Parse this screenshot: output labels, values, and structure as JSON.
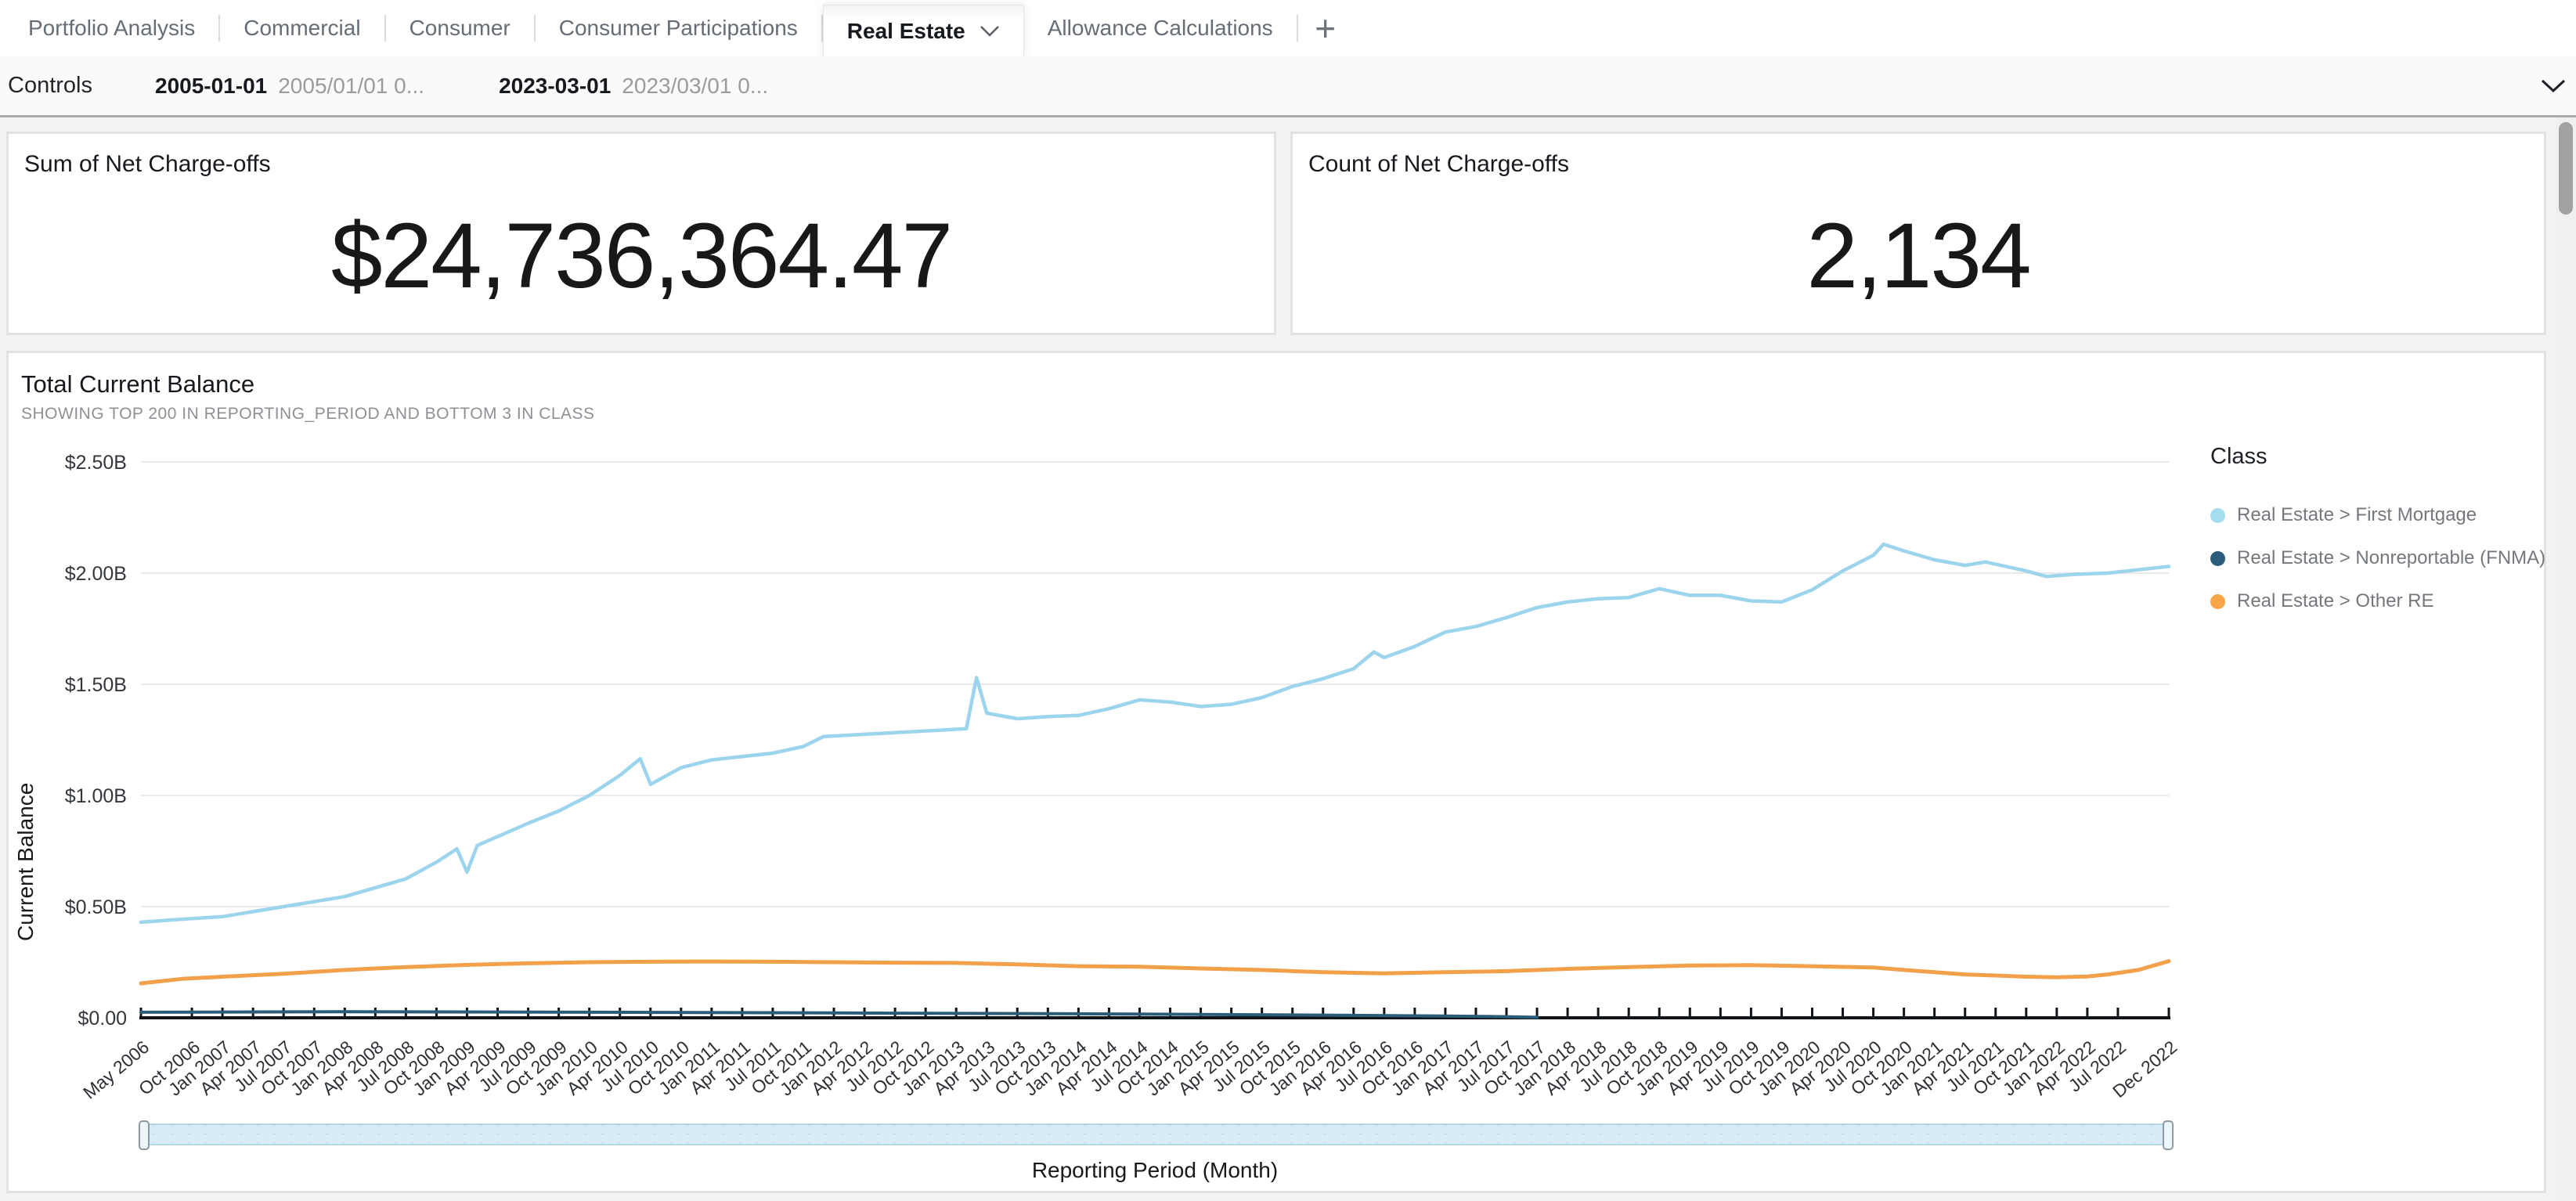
{
  "tabs": {
    "items": [
      {
        "label": "Portfolio Analysis",
        "active": false
      },
      {
        "label": "Commercial",
        "active": false
      },
      {
        "label": "Consumer",
        "active": false
      },
      {
        "label": "Consumer Participations",
        "active": false
      },
      {
        "label": "Real Estate",
        "active": true
      },
      {
        "label": "Allowance Calculations",
        "active": false
      }
    ],
    "add_label": "+"
  },
  "controls": {
    "title": "Controls",
    "filters": [
      {
        "value": "2005-01-01",
        "detail": "2005/01/01 0..."
      },
      {
        "value": "2023-03-01",
        "detail": "2023/03/01 0..."
      }
    ]
  },
  "kpis": [
    {
      "title": "Sum of Net Charge-offs",
      "value": "$24,736,364.47"
    },
    {
      "title": "Count of Net Charge-offs",
      "value": "2,134"
    }
  ],
  "chart_data": {
    "type": "line",
    "title": "Total Current Balance",
    "subtitle": "SHOWING TOP 200 IN REPORTING_PERIOD AND BOTTOM 3 IN CLASS",
    "xlabel": "Reporting Period (Month)",
    "ylabel": "Current Balance",
    "ylim": [
      0,
      2.5
    ],
    "unit": "$B",
    "x_unit": "months since May 2006",
    "x_range": [
      "May 2006",
      "Dec 2022"
    ],
    "grid": true,
    "legend_position": "right",
    "legend_title": "Class",
    "y_ticks": [
      {
        "v": 0.0,
        "t": "$0.00"
      },
      {
        "v": 0.5,
        "t": "$0.50B"
      },
      {
        "v": 1.0,
        "t": "$1.00B"
      },
      {
        "v": 1.5,
        "t": "$1.50B"
      },
      {
        "v": 2.0,
        "t": "$2.00B"
      },
      {
        "v": 2.5,
        "t": "$2.50B"
      }
    ],
    "x_labels": [
      {
        "m": 0,
        "t": "May 2006"
      },
      {
        "m": 5,
        "t": "Oct 2006"
      },
      {
        "m": 8,
        "t": "Jan 2007"
      },
      {
        "m": 11,
        "t": "Apr 2007"
      },
      {
        "m": 14,
        "t": "Jul 2007"
      },
      {
        "m": 17,
        "t": "Oct 2007"
      },
      {
        "m": 20,
        "t": "Jan 2008"
      },
      {
        "m": 23,
        "t": "Apr 2008"
      },
      {
        "m": 26,
        "t": "Jul 2008"
      },
      {
        "m": 29,
        "t": "Oct 2008"
      },
      {
        "m": 32,
        "t": "Jan 2009"
      },
      {
        "m": 35,
        "t": "Apr 2009"
      },
      {
        "m": 38,
        "t": "Jul 2009"
      },
      {
        "m": 41,
        "t": "Oct 2009"
      },
      {
        "m": 44,
        "t": "Jan 2010"
      },
      {
        "m": 47,
        "t": "Apr 2010"
      },
      {
        "m": 50,
        "t": "Jul 2010"
      },
      {
        "m": 53,
        "t": "Oct 2010"
      },
      {
        "m": 56,
        "t": "Jan 2011"
      },
      {
        "m": 59,
        "t": "Apr 2011"
      },
      {
        "m": 62,
        "t": "Jul 2011"
      },
      {
        "m": 65,
        "t": "Oct 2011"
      },
      {
        "m": 68,
        "t": "Jan 2012"
      },
      {
        "m": 71,
        "t": "Apr 2012"
      },
      {
        "m": 74,
        "t": "Jul 2012"
      },
      {
        "m": 77,
        "t": "Oct 2012"
      },
      {
        "m": 80,
        "t": "Jan 2013"
      },
      {
        "m": 83,
        "t": "Apr 2013"
      },
      {
        "m": 86,
        "t": "Jul 2013"
      },
      {
        "m": 89,
        "t": "Oct 2013"
      },
      {
        "m": 92,
        "t": "Jan 2014"
      },
      {
        "m": 95,
        "t": "Apr 2014"
      },
      {
        "m": 98,
        "t": "Jul 2014"
      },
      {
        "m": 101,
        "t": "Oct 2014"
      },
      {
        "m": 104,
        "t": "Jan 2015"
      },
      {
        "m": 107,
        "t": "Apr 2015"
      },
      {
        "m": 110,
        "t": "Jul 2015"
      },
      {
        "m": 113,
        "t": "Oct 2015"
      },
      {
        "m": 116,
        "t": "Jan 2016"
      },
      {
        "m": 119,
        "t": "Apr 2016"
      },
      {
        "m": 122,
        "t": "Jul 2016"
      },
      {
        "m": 125,
        "t": "Oct 2016"
      },
      {
        "m": 128,
        "t": "Jan 2017"
      },
      {
        "m": 131,
        "t": "Apr 2017"
      },
      {
        "m": 134,
        "t": "Jul 2017"
      },
      {
        "m": 137,
        "t": "Oct 2017"
      },
      {
        "m": 140,
        "t": "Jan 2018"
      },
      {
        "m": 143,
        "t": "Apr 2018"
      },
      {
        "m": 146,
        "t": "Jul 2018"
      },
      {
        "m": 149,
        "t": "Oct 2018"
      },
      {
        "m": 152,
        "t": "Jan 2019"
      },
      {
        "m": 155,
        "t": "Apr 2019"
      },
      {
        "m": 158,
        "t": "Jul 2019"
      },
      {
        "m": 161,
        "t": "Oct 2019"
      },
      {
        "m": 164,
        "t": "Jan 2020"
      },
      {
        "m": 167,
        "t": "Apr 2020"
      },
      {
        "m": 170,
        "t": "Jul 2020"
      },
      {
        "m": 173,
        "t": "Oct 2020"
      },
      {
        "m": 176,
        "t": "Jan 2021"
      },
      {
        "m": 179,
        "t": "Apr 2021"
      },
      {
        "m": 182,
        "t": "Jul 2021"
      },
      {
        "m": 185,
        "t": "Oct 2021"
      },
      {
        "m": 188,
        "t": "Jan 2022"
      },
      {
        "m": 191,
        "t": "Apr 2022"
      },
      {
        "m": 194,
        "t": "Jul 2022"
      },
      {
        "m": 199,
        "t": "Dec 2022"
      }
    ],
    "series": [
      {
        "name": "Real Estate > First Mortgage",
        "color": "#9bd4ec",
        "dot_color": "#a6dcf0",
        "width": 4.5,
        "points": [
          [
            0,
            0.43
          ],
          [
            3,
            0.44
          ],
          [
            8,
            0.455
          ],
          [
            14,
            0.5
          ],
          [
            20,
            0.545
          ],
          [
            26,
            0.625
          ],
          [
            29,
            0.7
          ],
          [
            31,
            0.76
          ],
          [
            32,
            0.655
          ],
          [
            33,
            0.775
          ],
          [
            38,
            0.875
          ],
          [
            41,
            0.93
          ],
          [
            44,
            1.0
          ],
          [
            47,
            1.09
          ],
          [
            49,
            1.165
          ],
          [
            50,
            1.05
          ],
          [
            53,
            1.125
          ],
          [
            56,
            1.16
          ],
          [
            62,
            1.19
          ],
          [
            65,
            1.22
          ],
          [
            67,
            1.265
          ],
          [
            71,
            1.275
          ],
          [
            77,
            1.29
          ],
          [
            81,
            1.3
          ],
          [
            82,
            1.53
          ],
          [
            83,
            1.37
          ],
          [
            86,
            1.345
          ],
          [
            89,
            1.355
          ],
          [
            92,
            1.36
          ],
          [
            95,
            1.39
          ],
          [
            98,
            1.43
          ],
          [
            101,
            1.42
          ],
          [
            104,
            1.4
          ],
          [
            107,
            1.41
          ],
          [
            110,
            1.44
          ],
          [
            113,
            1.49
          ],
          [
            116,
            1.525
          ],
          [
            119,
            1.57
          ],
          [
            121,
            1.645
          ],
          [
            122,
            1.62
          ],
          [
            125,
            1.67
          ],
          [
            128,
            1.735
          ],
          [
            131,
            1.76
          ],
          [
            134,
            1.8
          ],
          [
            137,
            1.845
          ],
          [
            140,
            1.87
          ],
          [
            143,
            1.885
          ],
          [
            146,
            1.89
          ],
          [
            149,
            1.93
          ],
          [
            152,
            1.9
          ],
          [
            155,
            1.9
          ],
          [
            158,
            1.875
          ],
          [
            161,
            1.87
          ],
          [
            164,
            1.925
          ],
          [
            167,
            2.01
          ],
          [
            170,
            2.08
          ],
          [
            171,
            2.13
          ],
          [
            173,
            2.1
          ],
          [
            176,
            2.06
          ],
          [
            179,
            2.035
          ],
          [
            181,
            2.05
          ],
          [
            185,
            2.01
          ],
          [
            187,
            1.985
          ],
          [
            190,
            1.995
          ],
          [
            193,
            2.0
          ],
          [
            196,
            2.015
          ],
          [
            199,
            2.03
          ]
        ]
      },
      {
        "name": "Real Estate > Nonreportable (FNMA)",
        "color": "#2b5d7b",
        "dot_color": "#2b5d7b",
        "width": 4,
        "points": [
          [
            0,
            0.025
          ],
          [
            20,
            0.027
          ],
          [
            44,
            0.025
          ],
          [
            68,
            0.022
          ],
          [
            92,
            0.018
          ],
          [
            104,
            0.015
          ],
          [
            116,
            0.012
          ],
          [
            128,
            0.008
          ],
          [
            134,
            0.005
          ],
          [
            137,
            0.002
          ]
        ]
      },
      {
        "name": "Real Estate > Other RE",
        "color": "#f2a04a",
        "dot_color": "#f5a649",
        "width": 5,
        "points": [
          [
            0,
            0.155
          ],
          [
            4,
            0.175
          ],
          [
            8,
            0.185
          ],
          [
            14,
            0.198
          ],
          [
            20,
            0.215
          ],
          [
            26,
            0.228
          ],
          [
            32,
            0.238
          ],
          [
            38,
            0.245
          ],
          [
            44,
            0.25
          ],
          [
            50,
            0.252
          ],
          [
            56,
            0.253
          ],
          [
            62,
            0.252
          ],
          [
            68,
            0.25
          ],
          [
            74,
            0.248
          ],
          [
            80,
            0.247
          ],
          [
            86,
            0.24
          ],
          [
            92,
            0.232
          ],
          [
            98,
            0.23
          ],
          [
            104,
            0.222
          ],
          [
            110,
            0.215
          ],
          [
            116,
            0.205
          ],
          [
            122,
            0.2
          ],
          [
            128,
            0.205
          ],
          [
            134,
            0.21
          ],
          [
            140,
            0.22
          ],
          [
            146,
            0.228
          ],
          [
            152,
            0.235
          ],
          [
            158,
            0.237
          ],
          [
            164,
            0.232
          ],
          [
            170,
            0.226
          ],
          [
            173,
            0.215
          ],
          [
            176,
            0.205
          ],
          [
            179,
            0.195
          ],
          [
            182,
            0.19
          ],
          [
            185,
            0.185
          ],
          [
            188,
            0.182
          ],
          [
            191,
            0.186
          ],
          [
            193,
            0.195
          ],
          [
            196,
            0.215
          ],
          [
            199,
            0.255
          ]
        ]
      }
    ]
  }
}
